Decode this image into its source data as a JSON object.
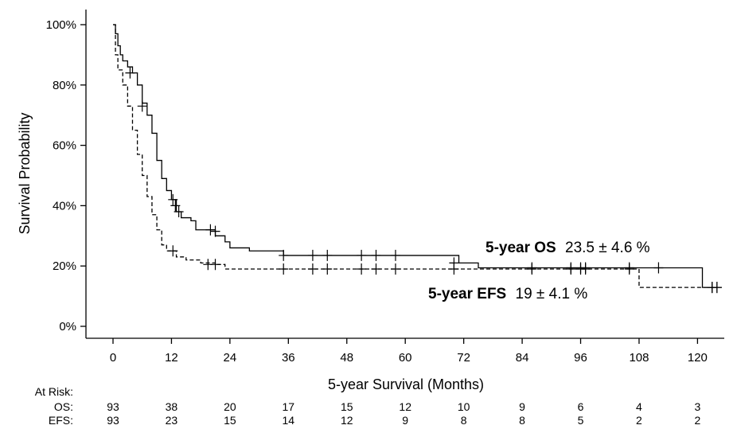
{
  "chart_data": {
    "type": "line",
    "title": "",
    "xlabel": "5-year Survival (Months)",
    "ylabel": "Survival Probability",
    "xlim": [
      0,
      125
    ],
    "ylim": [
      0,
      100
    ],
    "x_ticks": [
      0,
      12,
      24,
      36,
      48,
      60,
      72,
      84,
      96,
      108,
      120
    ],
    "y_ticks": [
      0,
      20,
      40,
      60,
      80,
      100
    ],
    "y_tick_labels": [
      "0%",
      "20%",
      "40%",
      "60%",
      "80%",
      "100%"
    ],
    "grid": false,
    "series": [
      {
        "name": "5-year OS",
        "style": "solid",
        "steps": [
          [
            0,
            100
          ],
          [
            0.5,
            97
          ],
          [
            1,
            93
          ],
          [
            1.5,
            90
          ],
          [
            2,
            88
          ],
          [
            3,
            86
          ],
          [
            4,
            84
          ],
          [
            5,
            80
          ],
          [
            6,
            74
          ],
          [
            7,
            70
          ],
          [
            8,
            64
          ],
          [
            9,
            55
          ],
          [
            10,
            49
          ],
          [
            11,
            45
          ],
          [
            12,
            42
          ],
          [
            13,
            38
          ],
          [
            14,
            36
          ],
          [
            16,
            35
          ],
          [
            17,
            32
          ],
          [
            20,
            32
          ],
          [
            21,
            30
          ],
          [
            23,
            28
          ],
          [
            24,
            26
          ],
          [
            28,
            25
          ],
          [
            35,
            23.5
          ],
          [
            70,
            23.5
          ],
          [
            71,
            21
          ],
          [
            75,
            19.4
          ],
          [
            107,
            19.4
          ],
          [
            120,
            19.4
          ],
          [
            121,
            12.9
          ],
          [
            124,
            12.9
          ]
        ],
        "censor_marks": [
          [
            3.5,
            84
          ],
          [
            6,
            73
          ],
          [
            12.3,
            42
          ],
          [
            12.8,
            40
          ],
          [
            13.5,
            38
          ],
          [
            20,
            32
          ],
          [
            21,
            31.5
          ],
          [
            35,
            23.5
          ],
          [
            41,
            23.5
          ],
          [
            44,
            23.5
          ],
          [
            51,
            23.5
          ],
          [
            54,
            23.5
          ],
          [
            58,
            23.5
          ],
          [
            70,
            21
          ],
          [
            86,
            19.4
          ],
          [
            94,
            19.4
          ],
          [
            96,
            19.4
          ],
          [
            97,
            19.4
          ],
          [
            106,
            19.4
          ],
          [
            112,
            19.4
          ],
          [
            123,
            12.9
          ],
          [
            124,
            12.9
          ]
        ]
      },
      {
        "name": "5-year EFS",
        "style": "dashed",
        "steps": [
          [
            0,
            100
          ],
          [
            0.5,
            90
          ],
          [
            1,
            85
          ],
          [
            2,
            80
          ],
          [
            3,
            73
          ],
          [
            4,
            65
          ],
          [
            5,
            57
          ],
          [
            6,
            50
          ],
          [
            7,
            43
          ],
          [
            8,
            37
          ],
          [
            9,
            32
          ],
          [
            10,
            27
          ],
          [
            11,
            25
          ],
          [
            13,
            23
          ],
          [
            15,
            22
          ],
          [
            18,
            21
          ],
          [
            21,
            20.5
          ],
          [
            23,
            19
          ],
          [
            107,
            19
          ],
          [
            108,
            12.9
          ],
          [
            124,
            12.9
          ]
        ],
        "censor_marks": [
          [
            12.3,
            25
          ],
          [
            19.5,
            20.5
          ],
          [
            21,
            20.5
          ],
          [
            35,
            19
          ],
          [
            41,
            19
          ],
          [
            44,
            19
          ],
          [
            51,
            19
          ],
          [
            54,
            19
          ],
          [
            58,
            19
          ],
          [
            70,
            19
          ],
          [
            86,
            19
          ],
          [
            94,
            19
          ],
          [
            96,
            19
          ],
          [
            97,
            19
          ],
          [
            106,
            19
          ],
          [
            123,
            12.9
          ],
          [
            124,
            12.9
          ]
        ]
      }
    ],
    "annotations": [
      {
        "bold": "5-year OS",
        "text": "23.5 ± 4.6 %"
      },
      {
        "bold": "5-year EFS",
        "text": "19 ± 4.1 %"
      }
    ],
    "at_risk": {
      "header": "At Risk:",
      "times": [
        0,
        12,
        24,
        36,
        48,
        60,
        72,
        84,
        96,
        108,
        120
      ],
      "rows": [
        {
          "label": "OS:",
          "values": [
            "93",
            "38",
            "20",
            "17",
            "15",
            "12",
            "10",
            "9",
            "6",
            "4",
            "3"
          ]
        },
        {
          "label": "EFS:",
          "values": [
            "93",
            "23",
            "15",
            "14",
            "12",
            "9",
            "8",
            "8",
            "5",
            "2",
            "2"
          ]
        }
      ]
    }
  }
}
